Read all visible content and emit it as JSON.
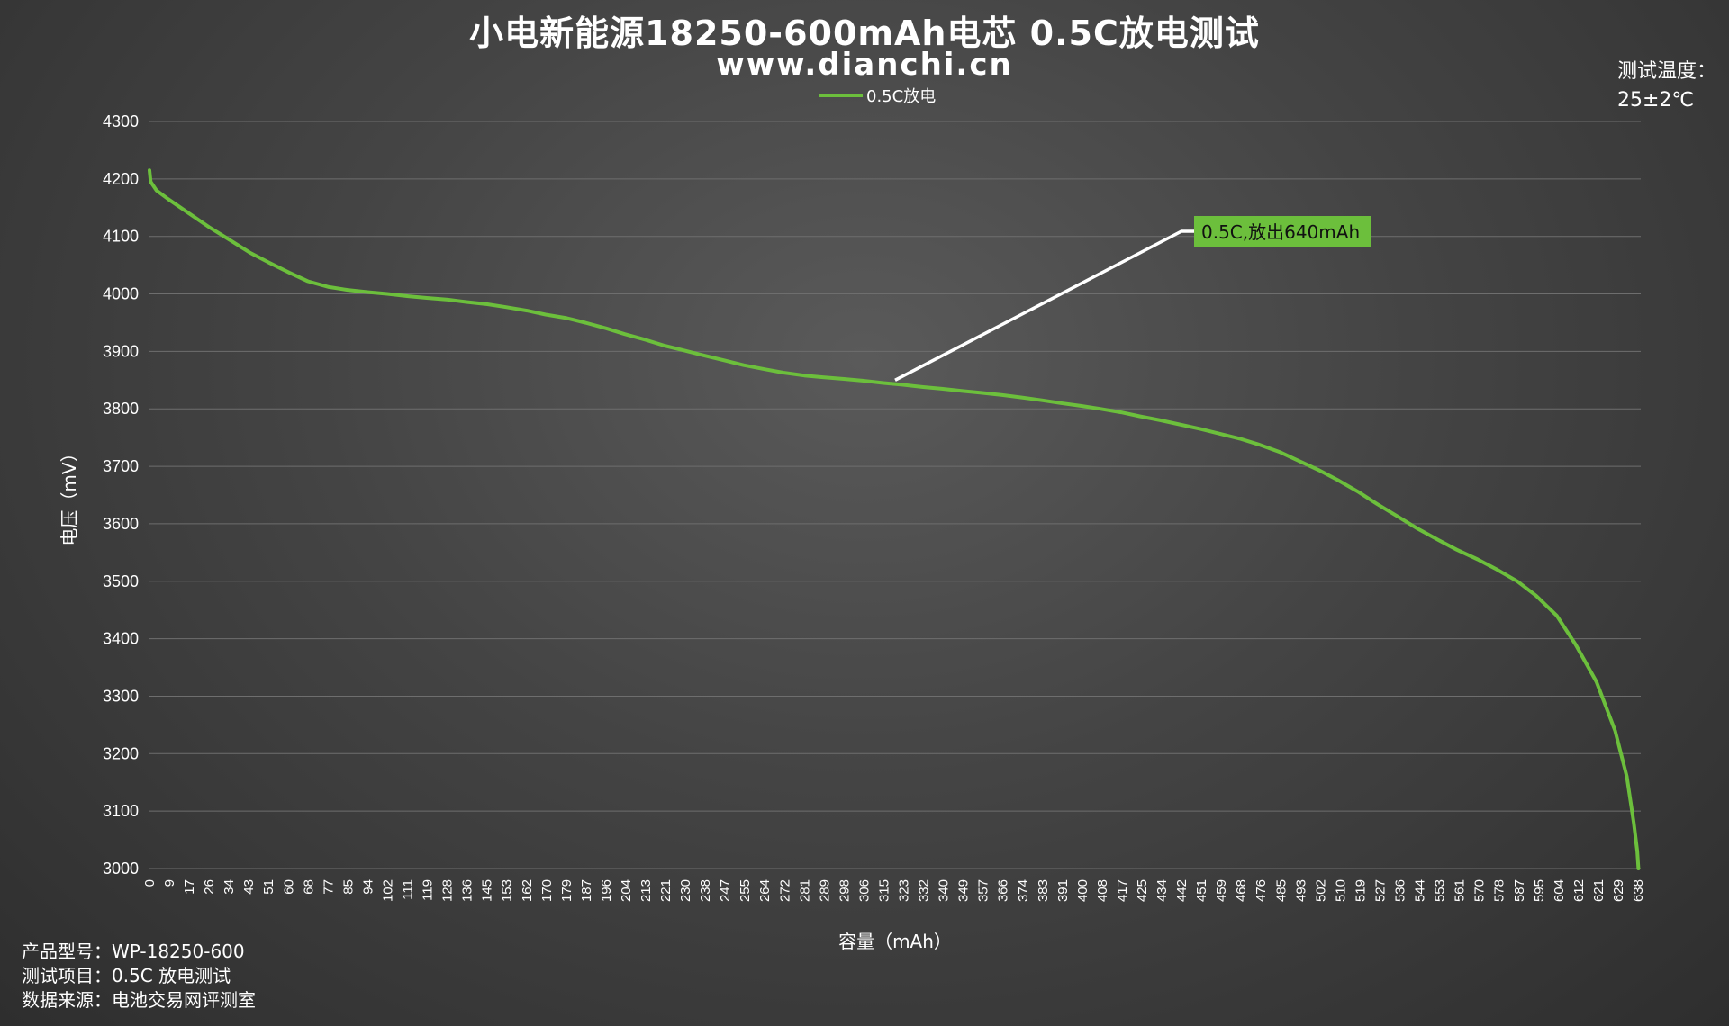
{
  "header": {
    "title": "小电新能源18250-600mAh电芯 0.5C放电测试",
    "subtitle": "www.dianchi.cn"
  },
  "temperature": {
    "label": "测试温度：",
    "value": "25±2℃"
  },
  "info": {
    "model": "产品型号：WP-18250-600",
    "item": "测试项目：0.5C 放电测试",
    "source": "数据来源：电池交易网评测室"
  },
  "chart_data": {
    "type": "line",
    "title": "小电新能源18250-600mAh电芯 0.5C放电测试",
    "xlabel": "容量（mAh）",
    "ylabel": "电压（mV）",
    "ylim": [
      3000,
      4300
    ],
    "yticks": [
      3000,
      3100,
      3200,
      3300,
      3400,
      3500,
      3600,
      3700,
      3800,
      3900,
      4000,
      4100,
      4200,
      4300
    ],
    "xlim": [
      0,
      640
    ],
    "xticks": [
      "0",
      "9",
      "17",
      "26",
      "34",
      "43",
      "51",
      "60",
      "68",
      "77",
      "85",
      "94",
      "102",
      "111",
      "119",
      "128",
      "136",
      "145",
      "153",
      "162",
      "170",
      "179",
      "187",
      "196",
      "204",
      "213",
      "221",
      "230",
      "238",
      "247",
      "255",
      "264",
      "272",
      "281",
      "289",
      "298",
      "306",
      "315",
      "323",
      "332",
      "340",
      "349",
      "357",
      "366",
      "374",
      "383",
      "391",
      "400",
      "408",
      "417",
      "425",
      "434",
      "442",
      "451",
      "459",
      "468",
      "476",
      "485",
      "493",
      "502",
      "510",
      "519",
      "527",
      "536",
      "544",
      "553",
      "561",
      "570",
      "578",
      "587",
      "595",
      "604",
      "612",
      "621",
      "629",
      "638"
    ],
    "grid": true,
    "legend_position": "top",
    "colors": {
      "series": "#6cbf3c",
      "annotation_line": "#ffffff",
      "annotation_box": "#6cbf3c"
    },
    "series": [
      {
        "name": "0.5C放电",
        "points": [
          [
            0,
            4215
          ],
          [
            0.5,
            4195
          ],
          [
            3,
            4180
          ],
          [
            8,
            4165
          ],
          [
            17,
            4140
          ],
          [
            26,
            4115
          ],
          [
            34,
            4095
          ],
          [
            43,
            4072
          ],
          [
            51,
            4055
          ],
          [
            60,
            4037
          ],
          [
            68,
            4022
          ],
          [
            77,
            4012
          ],
          [
            85,
            4007
          ],
          [
            94,
            4003
          ],
          [
            102,
            4000
          ],
          [
            111,
            3996
          ],
          [
            119,
            3993
          ],
          [
            128,
            3990
          ],
          [
            136,
            3986
          ],
          [
            145,
            3982
          ],
          [
            153,
            3977
          ],
          [
            162,
            3971
          ],
          [
            170,
            3964
          ],
          [
            179,
            3958
          ],
          [
            187,
            3950
          ],
          [
            196,
            3940
          ],
          [
            204,
            3930
          ],
          [
            213,
            3920
          ],
          [
            221,
            3910
          ],
          [
            230,
            3901
          ],
          [
            238,
            3893
          ],
          [
            247,
            3884
          ],
          [
            255,
            3876
          ],
          [
            264,
            3869
          ],
          [
            272,
            3863
          ],
          [
            281,
            3858
          ],
          [
            289,
            3855
          ],
          [
            298,
            3852
          ],
          [
            306,
            3849
          ],
          [
            315,
            3845
          ],
          [
            323,
            3842
          ],
          [
            332,
            3838
          ],
          [
            340,
            3835
          ],
          [
            349,
            3831
          ],
          [
            357,
            3828
          ],
          [
            366,
            3824
          ],
          [
            374,
            3820
          ],
          [
            383,
            3815
          ],
          [
            391,
            3810
          ],
          [
            400,
            3805
          ],
          [
            408,
            3800
          ],
          [
            417,
            3794
          ],
          [
            425,
            3787
          ],
          [
            434,
            3780
          ],
          [
            442,
            3773
          ],
          [
            451,
            3765
          ],
          [
            459,
            3757
          ],
          [
            468,
            3748
          ],
          [
            476,
            3738
          ],
          [
            485,
            3725
          ],
          [
            493,
            3710
          ],
          [
            502,
            3693
          ],
          [
            510,
            3676
          ],
          [
            519,
            3655
          ],
          [
            527,
            3634
          ],
          [
            536,
            3612
          ],
          [
            544,
            3592
          ],
          [
            553,
            3572
          ],
          [
            561,
            3555
          ],
          [
            570,
            3538
          ],
          [
            578,
            3521
          ],
          [
            587,
            3500
          ],
          [
            595,
            3475
          ],
          [
            604,
            3440
          ],
          [
            612,
            3390
          ],
          [
            621,
            3325
          ],
          [
            629,
            3240
          ],
          [
            634,
            3160
          ],
          [
            637,
            3080
          ],
          [
            638.5,
            3030
          ],
          [
            639,
            3000
          ]
        ]
      }
    ],
    "annotation": {
      "text": "0.5C,放出640mAh",
      "anchor": [
        320,
        3850
      ]
    }
  }
}
